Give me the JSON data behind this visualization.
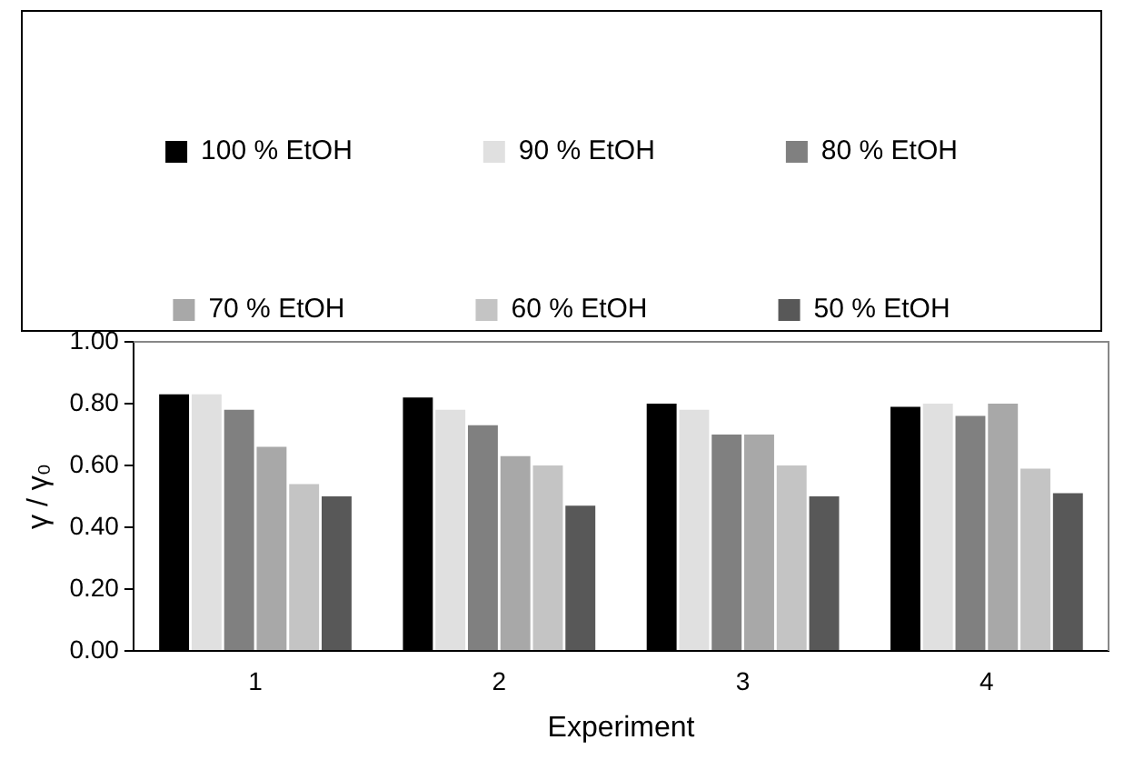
{
  "chart_data": {
    "type": "bar",
    "xlabel": "Experiment",
    "ylabel": "γ / γ₀",
    "categories": [
      "1",
      "2",
      "3",
      "4"
    ],
    "series": [
      {
        "name": "100 % EtOH",
        "color": "#000000",
        "values": [
          0.83,
          0.82,
          0.8,
          0.79
        ]
      },
      {
        "name": "90 % EtOH",
        "color": "#e0e0e0",
        "values": [
          0.83,
          0.78,
          0.78,
          0.8
        ]
      },
      {
        "name": "80 % EtOH",
        "color": "#808080",
        "values": [
          0.78,
          0.73,
          0.7,
          0.76
        ]
      },
      {
        "name": "70 % EtOH",
        "color": "#a8a8a8",
        "values": [
          0.66,
          0.63,
          0.7,
          0.8
        ]
      },
      {
        "name": "60 % EtOH",
        "color": "#c4c4c4",
        "values": [
          0.54,
          0.6,
          0.6,
          0.59
        ]
      },
      {
        "name": "50 % EtOH",
        "color": "#585858",
        "values": [
          0.5,
          0.47,
          0.5,
          0.51
        ]
      }
    ],
    "ylim": [
      0,
      1
    ],
    "yticks": [
      {
        "value": 0,
        "label": "0.00"
      },
      {
        "value": 0.2,
        "label": "0.20"
      },
      {
        "value": 0.4,
        "label": "0.40"
      },
      {
        "value": 0.6,
        "label": "0.60"
      },
      {
        "value": 0.8,
        "label": "0.80"
      },
      {
        "value": 1,
        "label": "1.00"
      }
    ],
    "grid": false,
    "legend": "top"
  }
}
